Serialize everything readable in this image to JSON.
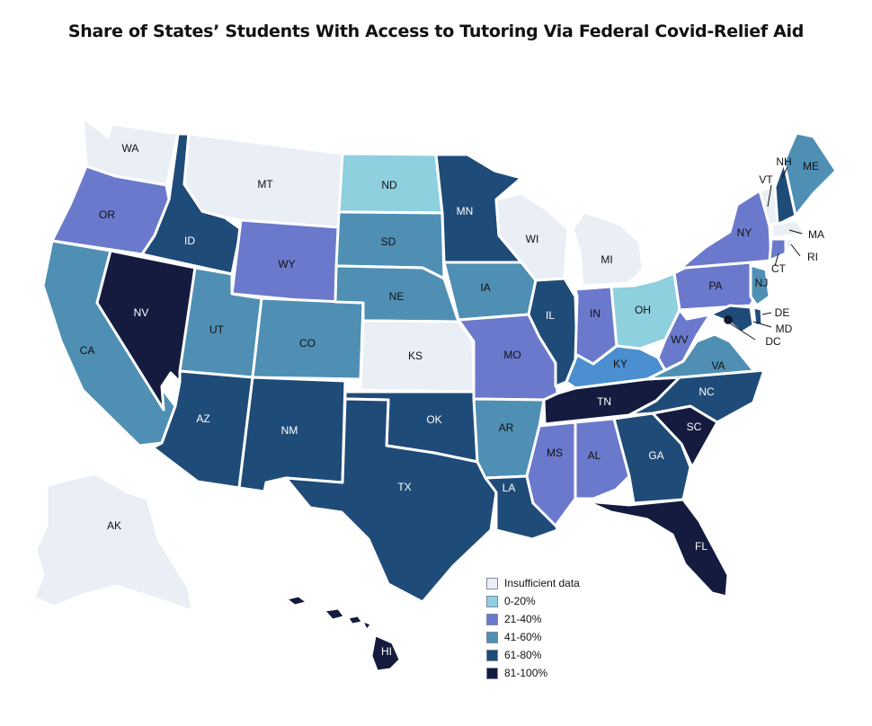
{
  "title": "Share of States’ Students With Access to Tutoring Via Federal Covid-Relief Aid",
  "colors": {
    "insufficient": "#eaeef5",
    "c0_20": "#8fd0df",
    "c21_40": "#6b79cc",
    "c41_60": "#4f8fb4",
    "c61_80": "#1f4b78",
    "c81_100": "#141b3f",
    "ky": "#4c8fd0"
  },
  "legend": [
    {
      "label": "Insufficient data",
      "cat": "insufficient"
    },
    {
      "label": "0-20%",
      "cat": "c0_20"
    },
    {
      "label": "21-40%",
      "cat": "c21_40"
    },
    {
      "label": "41-60%",
      "cat": "c41_60"
    },
    {
      "label": "61-80%",
      "cat": "c61_80"
    },
    {
      "label": "81-100%",
      "cat": "c81_100"
    }
  ],
  "states": {
    "WA": "insufficient",
    "OR": "c21_40",
    "CA": "c41_60",
    "NV": "c81_100",
    "ID": "c61_80",
    "MT": "insufficient",
    "WY": "c21_40",
    "UT": "c41_60",
    "CO": "c41_60",
    "AZ": "c61_80",
    "NM": "c61_80",
    "ND": "c0_20",
    "SD": "c41_60",
    "NE": "c41_60",
    "KS": "insufficient",
    "OK": "c61_80",
    "TX": "c61_80",
    "MN": "c61_80",
    "IA": "c41_60",
    "MO": "c21_40",
    "AR": "c41_60",
    "LA": "c61_80",
    "WI": "insufficient",
    "IL": "c61_80",
    "MI": "insufficient",
    "IN": "c21_40",
    "OH": "c0_20",
    "KY": "ky",
    "TN": "c81_100",
    "MS": "c21_40",
    "AL": "c21_40",
    "GA": "c61_80",
    "FL": "c81_100",
    "SC": "c81_100",
    "NC": "c61_80",
    "VA": "c41_60",
    "WV": "c21_40",
    "PA": "c21_40",
    "NY": "c21_40",
    "ME": "c41_60",
    "NH": "c61_80",
    "VT": "insufficient",
    "MA": "insufficient",
    "RI": "insufficient",
    "CT": "c21_40",
    "NJ": "c41_60",
    "DE": "c61_80",
    "MD": "c61_80",
    "DC": "c81_100",
    "AK": "insufficient",
    "HI": "c81_100"
  },
  "labels": {
    "WA": "WA",
    "OR": "OR",
    "CA": "CA",
    "NV": "NV",
    "ID": "ID",
    "MT": "MT",
    "WY": "WY",
    "UT": "UT",
    "CO": "CO",
    "AZ": "AZ",
    "NM": "NM",
    "ND": "ND",
    "SD": "SD",
    "NE": "NE",
    "KS": "KS",
    "OK": "OK",
    "TX": "TX",
    "MN": "MN",
    "IA": "IA",
    "MO": "MO",
    "AR": "AR",
    "LA": "LA",
    "WI": "WI",
    "IL": "IL",
    "MI": "MI",
    "IN": "IN",
    "OH": "OH",
    "KY": "KY",
    "TN": "TN",
    "MS": "MS",
    "AL": "AL",
    "GA": "GA",
    "FL": "FL",
    "SC": "SC",
    "NC": "NC",
    "VA": "VA",
    "WV": "WV",
    "PA": "PA",
    "NY": "NY",
    "ME": "ME",
    "NH": "NH",
    "VT": "VT",
    "MA": "MA",
    "RI": "RI",
    "CT": "CT",
    "NJ": "NJ",
    "DE": "DE",
    "MD": "MD",
    "DC": "DC",
    "AK": "AK",
    "HI": "HI"
  }
}
